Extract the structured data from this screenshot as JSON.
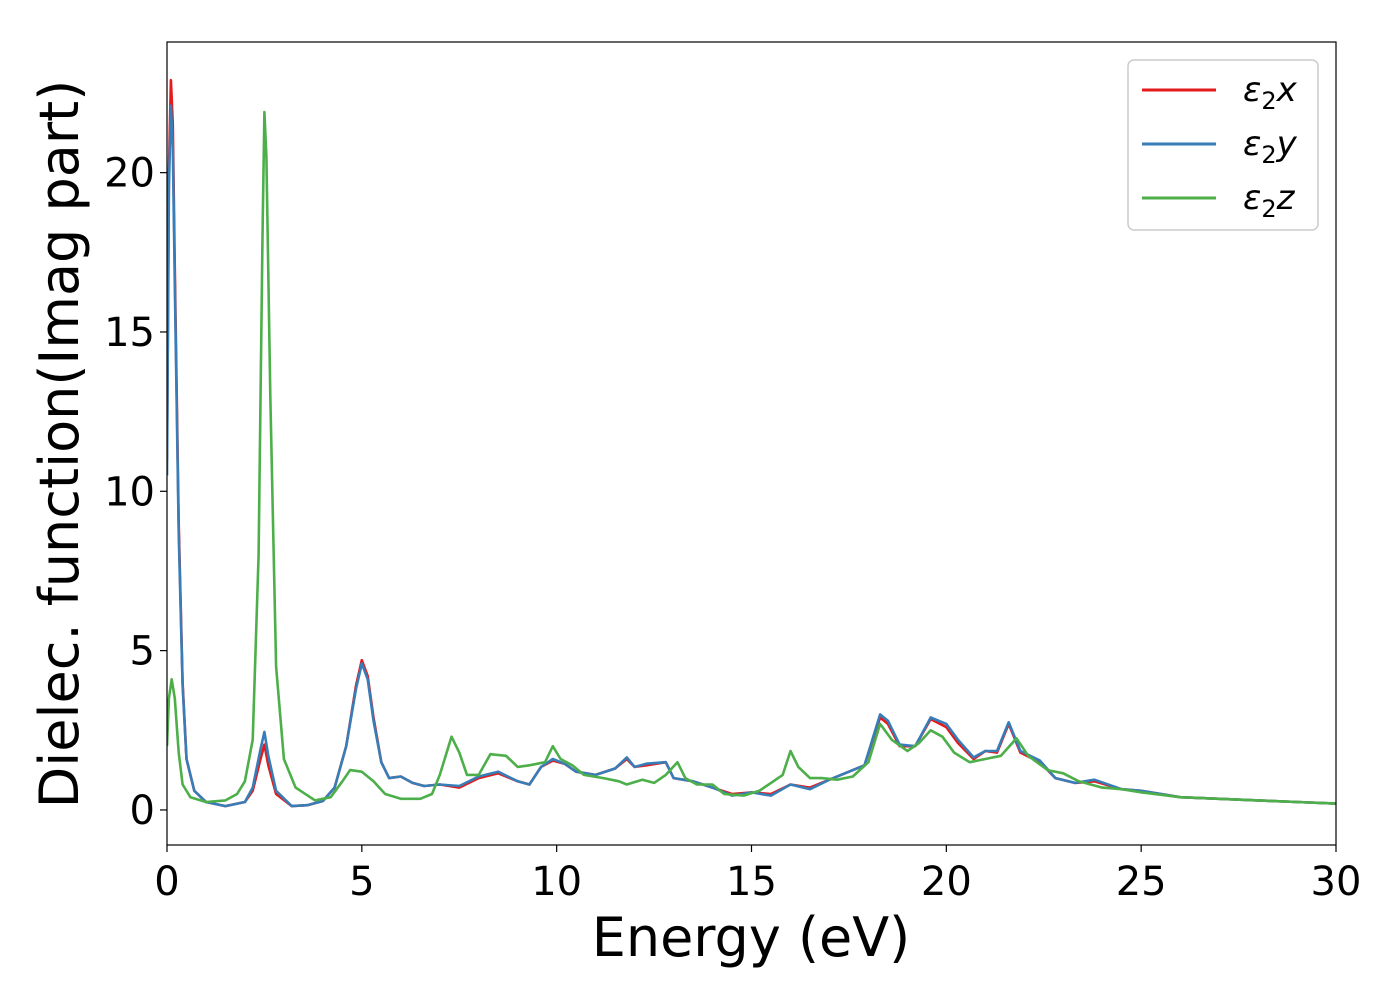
{
  "chart_data": {
    "type": "line",
    "xlabel": "Energy (eV)",
    "ylabel": "Dielec. function(Imag part)",
    "xlim": [
      0,
      30
    ],
    "ylim": [
      -1.1,
      24.1
    ],
    "x_ticks": [
      0,
      5,
      10,
      15,
      20,
      25,
      30
    ],
    "y_ticks": [
      0,
      5,
      10,
      15,
      20
    ],
    "grid": false,
    "legend_position": "top-right",
    "series": [
      {
        "name": "ε2x",
        "legend_main": "ε",
        "legend_sub": "2",
        "legend_var": "x",
        "color": "#e41a1c",
        "points": [
          [
            0,
            11.0
          ],
          [
            0.05,
            20.0
          ],
          [
            0.1,
            22.9
          ],
          [
            0.15,
            21.5
          ],
          [
            0.2,
            17.0
          ],
          [
            0.3,
            9.0
          ],
          [
            0.4,
            4.0
          ],
          [
            0.5,
            1.6
          ],
          [
            0.7,
            0.6
          ],
          [
            1.0,
            0.25
          ],
          [
            1.5,
            0.12
          ],
          [
            2.0,
            0.25
          ],
          [
            2.2,
            0.6
          ],
          [
            2.4,
            1.6
          ],
          [
            2.5,
            2.05
          ],
          [
            2.6,
            1.4
          ],
          [
            2.8,
            0.5
          ],
          [
            3.2,
            0.12
          ],
          [
            3.6,
            0.15
          ],
          [
            4.0,
            0.28
          ],
          [
            4.3,
            0.7
          ],
          [
            4.6,
            2.0
          ],
          [
            4.85,
            3.9
          ],
          [
            5.0,
            4.7
          ],
          [
            5.15,
            4.2
          ],
          [
            5.3,
            2.9
          ],
          [
            5.5,
            1.5
          ],
          [
            5.7,
            1.0
          ],
          [
            6.0,
            1.05
          ],
          [
            6.3,
            0.85
          ],
          [
            6.6,
            0.75
          ],
          [
            7.0,
            0.8
          ],
          [
            7.5,
            0.7
          ],
          [
            8.0,
            1.0
          ],
          [
            8.5,
            1.15
          ],
          [
            9.0,
            0.9
          ],
          [
            9.3,
            0.8
          ],
          [
            9.6,
            1.35
          ],
          [
            9.9,
            1.55
          ],
          [
            10.2,
            1.45
          ],
          [
            10.5,
            1.2
          ],
          [
            11.0,
            1.1
          ],
          [
            11.5,
            1.3
          ],
          [
            11.8,
            1.6
          ],
          [
            12.0,
            1.35
          ],
          [
            12.3,
            1.4
          ],
          [
            12.8,
            1.5
          ],
          [
            13.0,
            1.0
          ],
          [
            13.5,
            0.9
          ],
          [
            14.0,
            0.7
          ],
          [
            14.5,
            0.5
          ],
          [
            15.0,
            0.55
          ],
          [
            15.5,
            0.5
          ],
          [
            16.0,
            0.8
          ],
          [
            16.5,
            0.7
          ],
          [
            17.0,
            0.95
          ],
          [
            17.5,
            1.2
          ],
          [
            17.9,
            1.4
          ],
          [
            18.3,
            2.9
          ],
          [
            18.5,
            2.7
          ],
          [
            18.8,
            2.0
          ],
          [
            19.2,
            2.0
          ],
          [
            19.6,
            2.85
          ],
          [
            20.0,
            2.6
          ],
          [
            20.3,
            2.1
          ],
          [
            20.7,
            1.6
          ],
          [
            21.0,
            1.85
          ],
          [
            21.3,
            1.8
          ],
          [
            21.6,
            2.7
          ],
          [
            21.9,
            1.8
          ],
          [
            22.4,
            1.5
          ],
          [
            22.8,
            1.0
          ],
          [
            23.3,
            0.85
          ],
          [
            23.8,
            0.9
          ],
          [
            24.5,
            0.65
          ],
          [
            25.0,
            0.6
          ],
          [
            26.0,
            0.4
          ],
          [
            27.0,
            0.35
          ],
          [
            28.0,
            0.3
          ],
          [
            29.0,
            0.25
          ],
          [
            30.0,
            0.2
          ]
        ]
      },
      {
        "name": "ε2y",
        "legend_main": "ε",
        "legend_sub": "2",
        "legend_var": "y",
        "color": "#377eb8",
        "points": [
          [
            0,
            10.5
          ],
          [
            0.05,
            19.5
          ],
          [
            0.1,
            22.1
          ],
          [
            0.15,
            20.8
          ],
          [
            0.2,
            16.5
          ],
          [
            0.3,
            8.7
          ],
          [
            0.4,
            3.9
          ],
          [
            0.5,
            1.6
          ],
          [
            0.7,
            0.6
          ],
          [
            1.0,
            0.25
          ],
          [
            1.5,
            0.12
          ],
          [
            2.0,
            0.25
          ],
          [
            2.2,
            0.7
          ],
          [
            2.4,
            1.9
          ],
          [
            2.5,
            2.45
          ],
          [
            2.6,
            1.7
          ],
          [
            2.8,
            0.6
          ],
          [
            3.2,
            0.12
          ],
          [
            3.6,
            0.15
          ],
          [
            4.0,
            0.28
          ],
          [
            4.3,
            0.7
          ],
          [
            4.6,
            2.0
          ],
          [
            4.85,
            3.8
          ],
          [
            5.0,
            4.6
          ],
          [
            5.15,
            4.1
          ],
          [
            5.3,
            2.8
          ],
          [
            5.5,
            1.5
          ],
          [
            5.7,
            1.0
          ],
          [
            6.0,
            1.05
          ],
          [
            6.3,
            0.85
          ],
          [
            6.6,
            0.75
          ],
          [
            7.0,
            0.8
          ],
          [
            7.5,
            0.75
          ],
          [
            8.0,
            1.05
          ],
          [
            8.5,
            1.2
          ],
          [
            9.0,
            0.9
          ],
          [
            9.3,
            0.8
          ],
          [
            9.6,
            1.35
          ],
          [
            9.9,
            1.6
          ],
          [
            10.2,
            1.45
          ],
          [
            10.5,
            1.2
          ],
          [
            11.0,
            1.1
          ],
          [
            11.5,
            1.3
          ],
          [
            11.8,
            1.65
          ],
          [
            12.0,
            1.35
          ],
          [
            12.3,
            1.45
          ],
          [
            12.8,
            1.5
          ],
          [
            13.0,
            1.0
          ],
          [
            13.5,
            0.9
          ],
          [
            14.0,
            0.7
          ],
          [
            14.5,
            0.45
          ],
          [
            15.0,
            0.55
          ],
          [
            15.5,
            0.45
          ],
          [
            16.0,
            0.8
          ],
          [
            16.5,
            0.65
          ],
          [
            17.0,
            0.95
          ],
          [
            17.5,
            1.2
          ],
          [
            17.9,
            1.4
          ],
          [
            18.3,
            3.0
          ],
          [
            18.5,
            2.8
          ],
          [
            18.8,
            2.05
          ],
          [
            19.2,
            2.0
          ],
          [
            19.6,
            2.9
          ],
          [
            20.0,
            2.7
          ],
          [
            20.3,
            2.2
          ],
          [
            20.7,
            1.65
          ],
          [
            21.0,
            1.85
          ],
          [
            21.3,
            1.85
          ],
          [
            21.6,
            2.75
          ],
          [
            21.9,
            1.85
          ],
          [
            22.4,
            1.55
          ],
          [
            22.8,
            1.0
          ],
          [
            23.3,
            0.85
          ],
          [
            23.8,
            0.95
          ],
          [
            24.5,
            0.65
          ],
          [
            25.0,
            0.6
          ],
          [
            26.0,
            0.4
          ],
          [
            27.0,
            0.35
          ],
          [
            28.0,
            0.3
          ],
          [
            29.0,
            0.25
          ],
          [
            30.0,
            0.2
          ]
        ]
      },
      {
        "name": "ε2z",
        "legend_main": "ε",
        "legend_sub": "2",
        "legend_var": "z",
        "color": "#4daf4a",
        "points": [
          [
            0,
            2.0
          ],
          [
            0.05,
            3.5
          ],
          [
            0.12,
            4.1
          ],
          [
            0.2,
            3.5
          ],
          [
            0.3,
            1.8
          ],
          [
            0.4,
            0.8
          ],
          [
            0.6,
            0.4
          ],
          [
            1.0,
            0.25
          ],
          [
            1.5,
            0.3
          ],
          [
            1.8,
            0.5
          ],
          [
            2.0,
            0.9
          ],
          [
            2.2,
            2.2
          ],
          [
            2.35,
            8.0
          ],
          [
            2.45,
            18.0
          ],
          [
            2.5,
            21.9
          ],
          [
            2.55,
            20.5
          ],
          [
            2.65,
            13.0
          ],
          [
            2.8,
            4.5
          ],
          [
            3.0,
            1.6
          ],
          [
            3.3,
            0.7
          ],
          [
            3.8,
            0.3
          ],
          [
            4.2,
            0.4
          ],
          [
            4.5,
            0.9
          ],
          [
            4.7,
            1.25
          ],
          [
            5.0,
            1.2
          ],
          [
            5.3,
            0.9
          ],
          [
            5.6,
            0.5
          ],
          [
            6.0,
            0.35
          ],
          [
            6.5,
            0.35
          ],
          [
            6.8,
            0.5
          ],
          [
            7.0,
            1.1
          ],
          [
            7.3,
            2.3
          ],
          [
            7.5,
            1.8
          ],
          [
            7.7,
            1.1
          ],
          [
            8.0,
            1.1
          ],
          [
            8.3,
            1.75
          ],
          [
            8.7,
            1.7
          ],
          [
            9.0,
            1.35
          ],
          [
            9.3,
            1.4
          ],
          [
            9.7,
            1.5
          ],
          [
            9.9,
            2.0
          ],
          [
            10.1,
            1.6
          ],
          [
            10.4,
            1.4
          ],
          [
            10.7,
            1.1
          ],
          [
            11.2,
            1.0
          ],
          [
            11.6,
            0.9
          ],
          [
            11.8,
            0.8
          ],
          [
            12.2,
            0.95
          ],
          [
            12.5,
            0.85
          ],
          [
            12.8,
            1.1
          ],
          [
            13.1,
            1.5
          ],
          [
            13.3,
            1.0
          ],
          [
            13.6,
            0.8
          ],
          [
            14.0,
            0.8
          ],
          [
            14.3,
            0.5
          ],
          [
            14.8,
            0.45
          ],
          [
            15.2,
            0.6
          ],
          [
            15.5,
            0.85
          ],
          [
            15.8,
            1.1
          ],
          [
            16.0,
            1.85
          ],
          [
            16.2,
            1.35
          ],
          [
            16.5,
            1.0
          ],
          [
            16.8,
            1.0
          ],
          [
            17.2,
            0.95
          ],
          [
            17.6,
            1.05
          ],
          [
            18.0,
            1.5
          ],
          [
            18.3,
            2.7
          ],
          [
            18.6,
            2.2
          ],
          [
            19.0,
            1.85
          ],
          [
            19.3,
            2.1
          ],
          [
            19.6,
            2.5
          ],
          [
            19.9,
            2.3
          ],
          [
            20.2,
            1.8
          ],
          [
            20.6,
            1.5
          ],
          [
            21.0,
            1.6
          ],
          [
            21.4,
            1.7
          ],
          [
            21.8,
            2.25
          ],
          [
            22.1,
            1.7
          ],
          [
            22.6,
            1.25
          ],
          [
            23.0,
            1.15
          ],
          [
            23.4,
            0.9
          ],
          [
            24.0,
            0.7
          ],
          [
            24.5,
            0.65
          ],
          [
            25.0,
            0.55
          ],
          [
            26.0,
            0.4
          ],
          [
            27.0,
            0.35
          ],
          [
            28.0,
            0.3
          ],
          [
            29.0,
            0.25
          ],
          [
            30.0,
            0.2
          ]
        ]
      }
    ]
  }
}
